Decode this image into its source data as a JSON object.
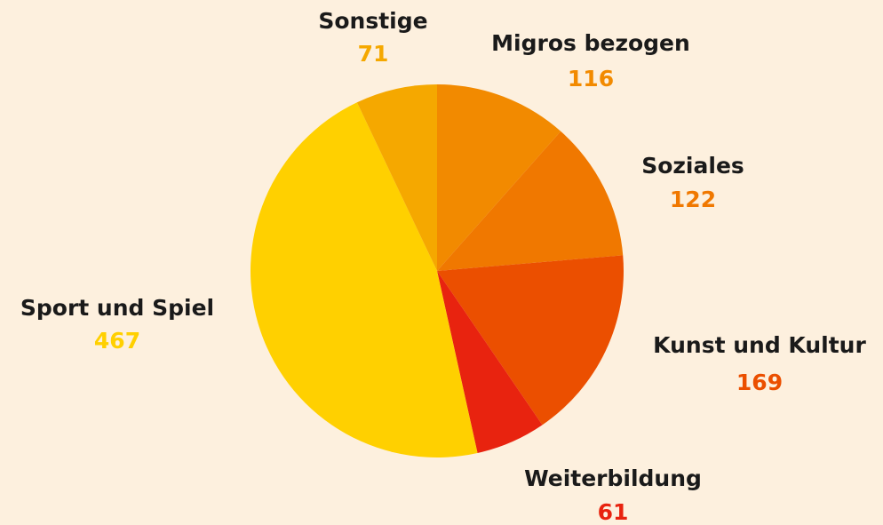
{
  "chart_data": {
    "type": "pie",
    "categories": [
      "Migros bezogen",
      "Soziales",
      "Kunst und Kultur",
      "Weiterbildung",
      "Sport und Spiel",
      "Sonstige"
    ],
    "values": [
      116,
      122,
      169,
      61,
      467,
      71
    ],
    "colors": [
      "#f28a00",
      "#f07800",
      "#eb4f00",
      "#e8230f",
      "#ffd000",
      "#f5a800"
    ]
  }
}
